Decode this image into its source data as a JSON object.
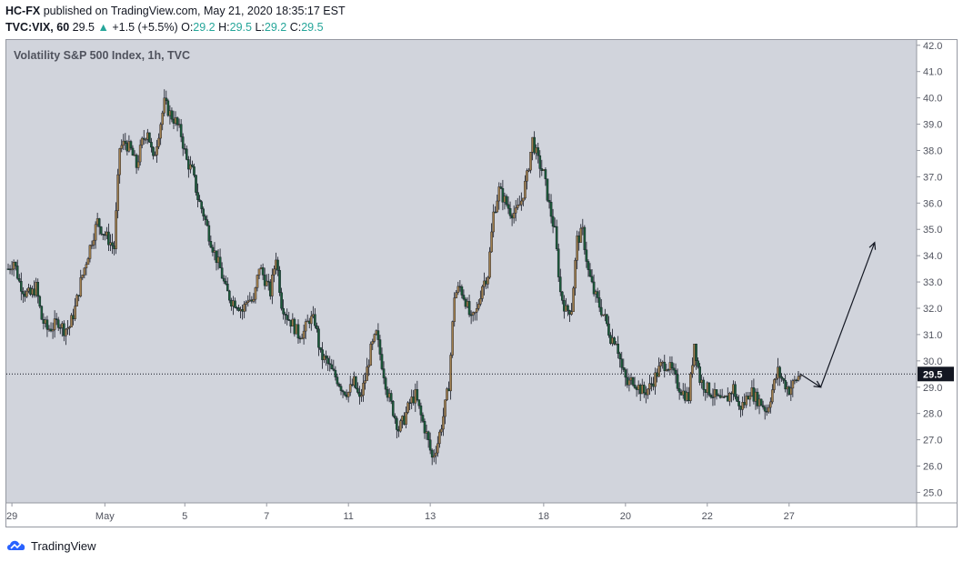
{
  "header": {
    "author": "HC-FX",
    "published_text": "published on TradingView.com, May 21, 2020 18:35:17 EST",
    "symbol": "TVC:VIX, 60",
    "last": "29.5",
    "change": "+1.5 (+5.5%)",
    "o_label": "O:",
    "o_value": "29.2",
    "h_label": "H:",
    "h_value": "29.5",
    "l_label": "L:",
    "l_value": "29.2",
    "c_label": "C:",
    "c_value": "29.5"
  },
  "footer": {
    "brand": "TradingView"
  },
  "colors": {
    "background": "#ffffff",
    "chart_bg": "#d1d4dc",
    "candle_up": "#a07f4e",
    "candle_down": "#1c5a3a",
    "wick": "#131722",
    "axis_text": "#50535e",
    "price_label_bg": "#131722",
    "price_label_text": "#ffffff",
    "change_color": "#26a69a"
  },
  "icons": {
    "up_arrow": "triangle-up-icon",
    "logo": "tradingview-cloud-icon"
  },
  "chart_data": {
    "type": "candlestick",
    "title": "Volatility S&P 500 Index, 1h, TVC",
    "ylim": [
      24.6,
      42.2
    ],
    "y_ticks": [
      "25.0",
      "26.0",
      "27.0",
      "28.0",
      "29.0",
      "30.0",
      "31.0",
      "32.0",
      "33.0",
      "34.0",
      "35.0",
      "36.0",
      "37.0",
      "38.0",
      "39.0",
      "40.0",
      "41.0",
      "42.0"
    ],
    "x_ticks": [
      "29",
      "May",
      "5",
      "7",
      "11",
      "13",
      "18",
      "20",
      "22",
      "27"
    ],
    "last_price": 29.5,
    "last_price_label": "29.5",
    "price_path": [
      [
        0,
        33.5
      ],
      [
        3,
        33.8
      ],
      [
        6,
        33.0
      ],
      [
        9,
        32.6
      ],
      [
        12,
        32.5
      ],
      [
        15,
        32.8
      ],
      [
        18,
        31.6
      ],
      [
        21,
        31.2
      ],
      [
        24,
        31.3
      ],
      [
        27,
        31.5
      ],
      [
        30,
        31.2
      ],
      [
        33,
        31.3
      ],
      [
        36,
        32.0
      ],
      [
        39,
        33.0
      ],
      [
        42,
        33.8
      ],
      [
        45,
        34.6
      ],
      [
        48,
        35.3
      ],
      [
        51,
        34.9
      ],
      [
        54,
        34.6
      ],
      [
        57,
        34.3
      ],
      [
        60,
        38.1
      ],
      [
        63,
        38.3
      ],
      [
        66,
        38.0
      ],
      [
        69,
        37.4
      ],
      [
        72,
        38.3
      ],
      [
        75,
        38.8
      ],
      [
        78,
        37.6
      ],
      [
        81,
        38.7
      ],
      [
        84,
        39.8
      ],
      [
        87,
        39.4
      ],
      [
        90,
        39.1
      ],
      [
        93,
        38.6
      ],
      [
        96,
        37.6
      ],
      [
        99,
        37.2
      ],
      [
        102,
        36.2
      ],
      [
        105,
        35.6
      ],
      [
        108,
        34.8
      ],
      [
        111,
        34.1
      ],
      [
        114,
        33.5
      ],
      [
        117,
        32.7
      ],
      [
        120,
        32.3
      ],
      [
        123,
        32.2
      ],
      [
        126,
        31.9
      ],
      [
        129,
        32.4
      ],
      [
        132,
        32.2
      ],
      [
        135,
        33.6
      ],
      [
        138,
        33.1
      ],
      [
        141,
        32.6
      ],
      [
        144,
        34.0
      ],
      [
        147,
        32.2
      ],
      [
        150,
        31.7
      ],
      [
        153,
        31.4
      ],
      [
        156,
        31.0
      ],
      [
        159,
        31.1
      ],
      [
        162,
        31.6
      ],
      [
        165,
        31.5
      ],
      [
        168,
        30.2
      ],
      [
        171,
        30.0
      ],
      [
        174,
        29.6
      ],
      [
        177,
        29.3
      ],
      [
        180,
        28.9
      ],
      [
        183,
        28.8
      ],
      [
        186,
        29.2
      ],
      [
        189,
        28.5
      ],
      [
        192,
        29.3
      ],
      [
        195,
        30.4
      ],
      [
        198,
        31.0
      ],
      [
        201,
        29.9
      ],
      [
        204,
        28.8
      ],
      [
        207,
        28.1
      ],
      [
        210,
        27.4
      ],
      [
        213,
        27.8
      ],
      [
        216,
        28.4
      ],
      [
        219,
        28.7
      ],
      [
        222,
        27.9
      ],
      [
        225,
        27.2
      ],
      [
        228,
        26.3
      ],
      [
        231,
        26.9
      ],
      [
        234,
        27.9
      ],
      [
        237,
        29.1
      ],
      [
        240,
        32.5
      ],
      [
        243,
        32.8
      ],
      [
        246,
        32.3
      ],
      [
        249,
        31.5
      ],
      [
        252,
        31.9
      ],
      [
        255,
        32.9
      ],
      [
        258,
        33.3
      ],
      [
        261,
        35.6
      ],
      [
        264,
        36.5
      ],
      [
        267,
        36.1
      ],
      [
        270,
        35.7
      ],
      [
        273,
        35.6
      ],
      [
        276,
        36.1
      ],
      [
        279,
        37.0
      ],
      [
        282,
        38.4
      ],
      [
        285,
        37.6
      ],
      [
        288,
        37.1
      ],
      [
        291,
        35.9
      ],
      [
        294,
        34.9
      ],
      [
        297,
        32.6
      ],
      [
        300,
        31.9
      ],
      [
        303,
        32.0
      ],
      [
        306,
        34.6
      ],
      [
        309,
        34.9
      ],
      [
        312,
        33.4
      ],
      [
        315,
        32.6
      ],
      [
        318,
        32.1
      ],
      [
        321,
        31.6
      ],
      [
        324,
        30.9
      ],
      [
        327,
        30.8
      ],
      [
        330,
        29.7
      ],
      [
        333,
        29.1
      ],
      [
        336,
        29.3
      ],
      [
        339,
        29.0
      ],
      [
        342,
        28.8
      ],
      [
        345,
        29.0
      ],
      [
        348,
        29.4
      ],
      [
        351,
        29.8
      ],
      [
        354,
        29.9
      ],
      [
        357,
        29.6
      ],
      [
        360,
        29.1
      ],
      [
        363,
        28.8
      ],
      [
        366,
        28.6
      ],
      [
        369,
        30.7
      ],
      [
        372,
        29.3
      ],
      [
        375,
        29.0
      ],
      [
        378,
        28.8
      ],
      [
        381,
        28.6
      ],
      [
        384,
        28.4
      ],
      [
        387,
        28.6
      ],
      [
        390,
        29.0
      ],
      [
        393,
        28.2
      ],
      [
        396,
        28.4
      ],
      [
        399,
        28.9
      ],
      [
        402,
        28.6
      ],
      [
        405,
        28.4
      ],
      [
        408,
        28.1
      ],
      [
        411,
        28.9
      ],
      [
        414,
        29.6
      ],
      [
        417,
        29.2
      ],
      [
        420,
        28.9
      ],
      [
        423,
        29.2
      ],
      [
        426,
        29.5
      ]
    ],
    "annotations": [
      {
        "type": "arrow",
        "from": [
          426,
          29.5
        ],
        "to": [
          437,
          29.0
        ]
      },
      {
        "type": "arrow",
        "from": [
          437,
          29.0
        ],
        "to": [
          466,
          34.5
        ]
      }
    ]
  }
}
